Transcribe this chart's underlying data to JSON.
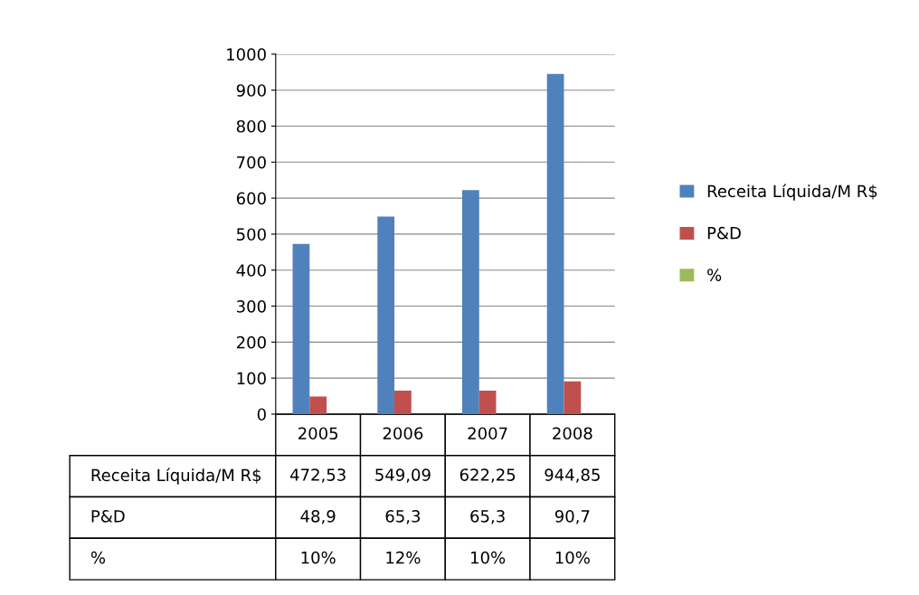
{
  "chart_data": {
    "type": "bar",
    "categories": [
      "2005",
      "2006",
      "2007",
      "2008"
    ],
    "series": [
      {
        "name": "Receita Líquida/M R$",
        "color": "#4f81bd",
        "values": [
          472.53,
          549.09,
          622.25,
          944.85
        ],
        "value_labels": [
          "472,53",
          "549,09",
          "622,25",
          "944,85"
        ]
      },
      {
        "name": "P&D",
        "color": "#c0504d",
        "values": [
          48.9,
          65.3,
          65.3,
          90.7
        ],
        "value_labels": [
          "48,9",
          "65,3",
          "65,3",
          "90,7"
        ]
      },
      {
        "name": "%",
        "color": "#9bbb59",
        "values": [
          0.1,
          0.12,
          0.1,
          0.1
        ],
        "value_labels": [
          "10%",
          "12%",
          "10%",
          "10%"
        ]
      }
    ],
    "ylim": [
      0,
      1000
    ],
    "yticks": [
      0,
      100,
      200,
      300,
      400,
      500,
      600,
      700,
      800,
      900,
      1000
    ],
    "grid": "y",
    "legend": "right"
  }
}
